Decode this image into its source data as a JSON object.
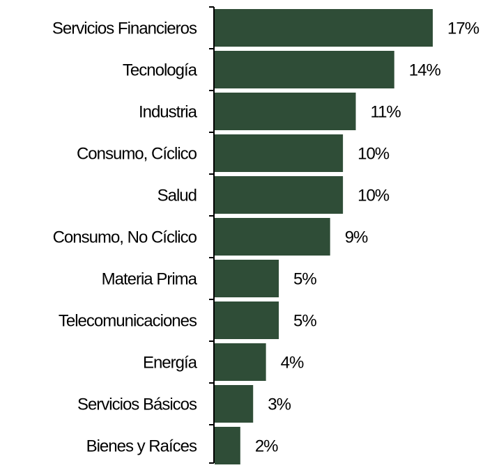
{
  "chart_data": {
    "type": "bar",
    "orientation": "horizontal",
    "categories": [
      "Servicios Financieros",
      "Tecnología",
      "Industria",
      "Consumo, Cíclico",
      "Salud",
      "Consumo, No Cíclico",
      "Materia Prima",
      "Telecomunicaciones",
      "Energía",
      "Servicios Básicos",
      "Bienes y Raíces"
    ],
    "values": [
      17,
      14,
      11,
      10,
      10,
      9,
      5,
      5,
      4,
      3,
      2
    ],
    "value_labels": [
      "17%",
      "14%",
      "11%",
      "10%",
      "10%",
      "9%",
      "5%",
      "5%",
      "4%",
      "3%",
      "2%"
    ],
    "color": "#2f4d37"
  }
}
